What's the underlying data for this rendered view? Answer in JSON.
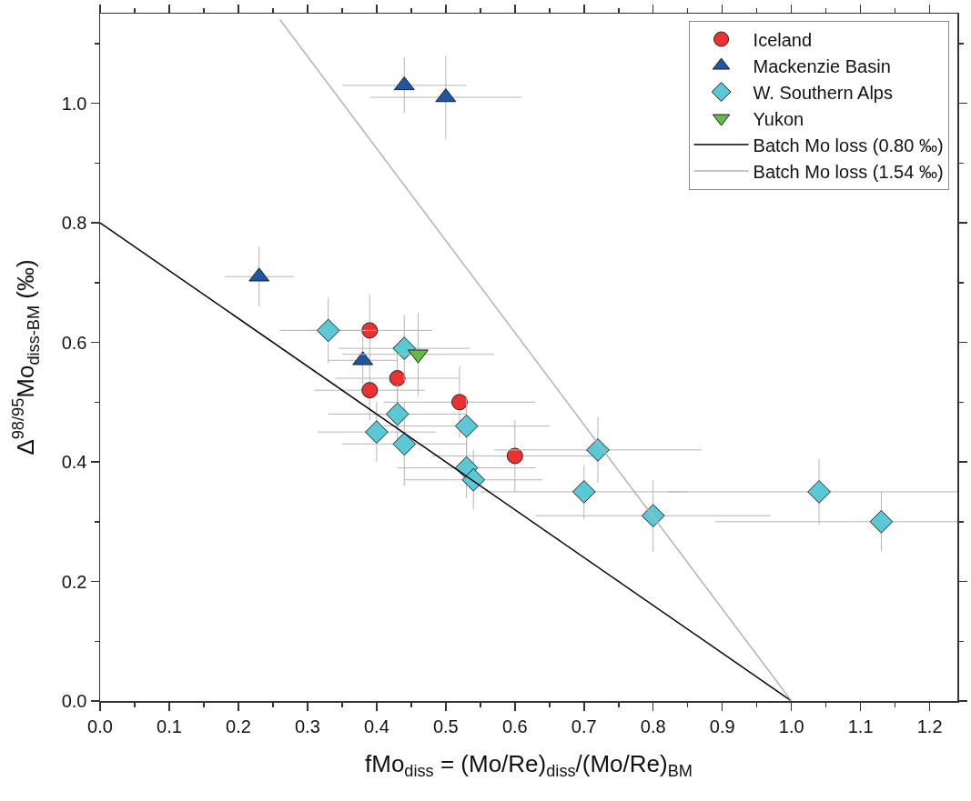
{
  "chart_data": {
    "type": "scatter",
    "xlabel": "fMo$_{diss}$ = (Mo/Re)$_{diss}$/(Mo/Re)$_{BM}$",
    "ylabel": "Δ$^{98/95}$Mo$_{diss-BM}$ (‰)",
    "xlim": [
      0,
      1.24
    ],
    "ylim": [
      0,
      1.15
    ],
    "xticks": [
      {
        "value": 0,
        "label": "0.0"
      },
      {
        "value": 0.1,
        "label": "0.1"
      },
      {
        "value": 0.2,
        "label": "0.2"
      },
      {
        "value": 0.3,
        "label": "0.3"
      },
      {
        "value": 0.4,
        "label": "0.4"
      },
      {
        "value": 0.5,
        "label": "0.5"
      },
      {
        "value": 0.6,
        "label": "0.6"
      },
      {
        "value": 0.7,
        "label": "0.7"
      },
      {
        "value": 0.8,
        "label": "0.8"
      },
      {
        "value": 0.9,
        "label": "0.9"
      },
      {
        "value": 1,
        "label": "1.0"
      },
      {
        "value": 1.1,
        "label": "1.1"
      },
      {
        "value": 1.2,
        "label": "1.2"
      }
    ],
    "yticks": [
      {
        "value": 0,
        "label": "0.0"
      },
      {
        "value": 0.2,
        "label": "0.2"
      },
      {
        "value": 0.4,
        "label": "0.4"
      },
      {
        "value": 0.6,
        "label": "0.6"
      },
      {
        "value": 0.8,
        "label": "0.8"
      },
      {
        "value": 1,
        "label": "1.0"
      }
    ],
    "grid": false,
    "legend": "top right",
    "series": [
      {
        "name": "Iceland",
        "color": "#ee3130",
        "marker": "circle",
        "x": [
          0.39,
          0.39,
          0.43,
          0.52,
          0.6
        ],
        "values": [
          0.62,
          0.52,
          0.54,
          0.5,
          0.41
        ],
        "errors": [
          0.06,
          0.05,
          0.05,
          0.06,
          0.06
        ],
        "xerrors": [
          0.09,
          0.08,
          0.09,
          0.11,
          0.12
        ]
      },
      {
        "name": "Mackenzie Basin",
        "color": "#1f55a5",
        "marker": "triangle",
        "x": [
          0.44,
          0.5,
          0.23,
          0.38
        ],
        "values": [
          1.03,
          1.01,
          0.71,
          0.57
        ],
        "errors": [
          0.047,
          0.07,
          0.05,
          0.04
        ],
        "xerrors": [
          0.09,
          0.11,
          0.05,
          0.05
        ]
      },
      {
        "name": "W. Southern Alps",
        "color": "#5bc8d6",
        "marker": "diamond",
        "x": [
          0.33,
          0.44,
          0.43,
          0.4,
          0.44,
          0.53,
          0.53,
          0.54,
          0.72,
          0.7,
          0.8,
          1.04,
          1.13
        ],
        "values": [
          0.62,
          0.59,
          0.48,
          0.45,
          0.43,
          0.46,
          0.39,
          0.37,
          0.42,
          0.35,
          0.31,
          0.35,
          0.3
        ],
        "errors": [
          0.055,
          0.055,
          0.05,
          0.05,
          0.07,
          0.05,
          0.05,
          0.05,
          0.055,
          0.045,
          0.06,
          0.055,
          0.05
        ],
        "xerrors": [
          0.07,
          0.095,
          0.1,
          0.085,
          0.09,
          0.12,
          0.1,
          0.1,
          0.15,
          0.15,
          0.17,
          [
            0.82,
            1.24
          ],
          [
            0.89,
            1.24
          ]
        ]
      },
      {
        "name": "Yukon",
        "color": "#62bb46",
        "marker": "triangle-down",
        "x": [
          0.46
        ],
        "values": [
          0.58
        ],
        "errors": [
          0.07
        ],
        "xerrors": [
          0.11
        ]
      },
      {
        "name": "Batch Mo loss (0.80 ‰)",
        "type": "line",
        "color": "#000000",
        "line_style": "solid",
        "marker": "none",
        "x": [
          0,
          1
        ],
        "values": [
          0.8,
          0
        ]
      },
      {
        "name": "Batch Mo loss (1.54 ‰)",
        "type": "line",
        "color": "#b3b3b3",
        "line_style": "solid",
        "marker": "none",
        "x": [
          0.26,
          1
        ],
        "values": [
          1.14,
          0
        ]
      }
    ]
  }
}
